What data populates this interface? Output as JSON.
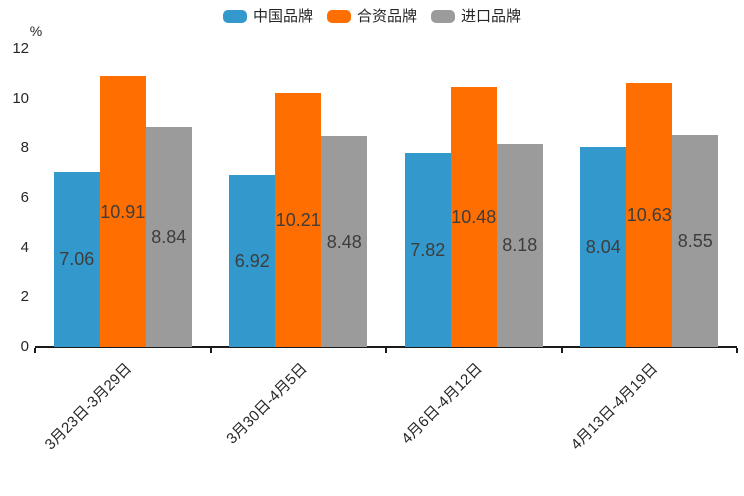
{
  "chart_data": {
    "type": "bar",
    "title": "",
    "unit_label": "%",
    "categories": [
      "3月23日-3月29日",
      "3月30日-4月5日",
      "4月6日-4月12日",
      "4月13日-4月19日"
    ],
    "series": [
      {
        "name": "中国品牌",
        "color": "#3398CC",
        "values": [
          7.06,
          6.92,
          7.82,
          8.04
        ]
      },
      {
        "name": "合资品牌",
        "color": "#FF6E00",
        "values": [
          10.91,
          10.21,
          10.48,
          10.63
        ]
      },
      {
        "name": "进口品牌",
        "color": "#9B9B9B",
        "values": [
          8.84,
          8.48,
          8.18,
          8.55
        ]
      }
    ],
    "ylim": [
      0,
      12
    ],
    "y_ticks": [
      0,
      2,
      4,
      6,
      8,
      10,
      12
    ],
    "grid": false,
    "legend_position": "top",
    "value_labels": "inside-center",
    "x_label_rotation": -45,
    "colors": {
      "background": "#FFFFFF",
      "axis": "#1A1A1A",
      "axis_text": "#262626",
      "value_label_text": "#3D3D3D"
    }
  }
}
